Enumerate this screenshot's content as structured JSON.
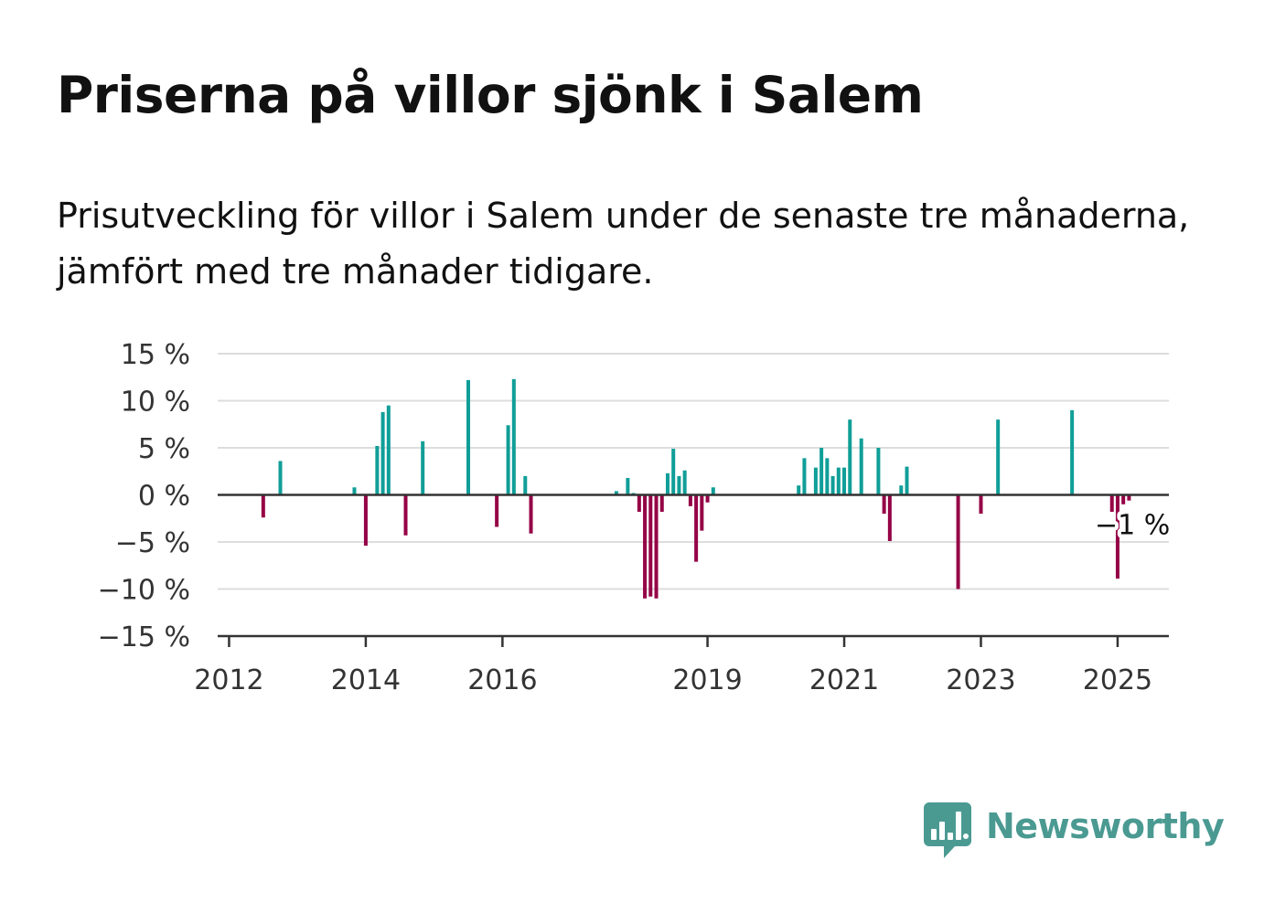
{
  "title": "Priserna på villor sjönk i Salem",
  "subtitle": "Prisutveckling för villor i Salem under de senaste tre månaderna, jämfört med tre månader tidigare.",
  "brand": {
    "name": "Newsworthy",
    "icon": "bar-chart-speech-bubble-icon",
    "color": "#4a9a92"
  },
  "colors": {
    "positive": "#109e98",
    "negative": "#950246",
    "grid": "#dddddd",
    "axis": "#333333"
  },
  "chart_data": {
    "type": "bar",
    "title": "",
    "xlabel": "",
    "ylabel": "",
    "ylim": [
      -15,
      15
    ],
    "yticks": [
      15,
      10,
      5,
      0,
      -5,
      -10,
      -15
    ],
    "ytick_labels": [
      "15 %",
      "10 %",
      "5 %",
      "0 %",
      "−5 %",
      "−10 %",
      "−15 %"
    ],
    "xticks": [
      "2012-01",
      "2014-01",
      "2016-01",
      "2019-01",
      "2021-01",
      "2023-01",
      "2025-01"
    ],
    "xtick_labels": [
      "2012",
      "2014",
      "2016",
      "2019",
      "2021",
      "2023",
      "2025"
    ],
    "xlim": [
      "2011-11",
      "2025-10"
    ],
    "grid": true,
    "annotations": [
      {
        "x": "2025-02",
        "text": "−1 %"
      }
    ],
    "x": [
      "2012-07",
      "2012-10",
      "2013-11",
      "2014-01",
      "2014-03",
      "2014-04",
      "2014-05",
      "2014-08",
      "2014-11",
      "2015-07",
      "2015-12",
      "2016-02",
      "2016-03",
      "2016-05",
      "2016-06",
      "2017-09",
      "2017-11",
      "2017-12",
      "2018-01",
      "2018-02",
      "2018-03",
      "2018-04",
      "2018-05",
      "2018-06",
      "2018-07",
      "2018-08",
      "2018-09",
      "2018-10",
      "2018-11",
      "2018-12",
      "2019-01",
      "2019-02",
      "2020-05",
      "2020-06",
      "2020-08",
      "2020-09",
      "2020-10",
      "2020-11",
      "2020-12",
      "2021-01",
      "2021-02",
      "2021-04",
      "2021-07",
      "2021-08",
      "2021-09",
      "2021-11",
      "2021-12",
      "2022-09",
      "2023-01",
      "2023-04",
      "2024-05",
      "2024-12",
      "2025-01",
      "2025-02",
      "2025-03"
    ],
    "values": [
      -2.4,
      3.6,
      0.8,
      -5.4,
      5.2,
      8.8,
      9.5,
      -4.3,
      5.7,
      12.2,
      -3.4,
      7.4,
      12.3,
      2.0,
      -4.1,
      0.4,
      1.8,
      0.2,
      -1.8,
      -11.0,
      -10.8,
      -11.0,
      -1.8,
      2.3,
      4.9,
      2.0,
      2.6,
      -1.2,
      -7.1,
      -3.8,
      -0.8,
      0.8,
      1.0,
      3.9,
      2.9,
      5.0,
      3.9,
      2.0,
      2.9,
      2.9,
      8.0,
      6.0,
      5.0,
      -2.0,
      -4.9,
      1.0,
      3.0,
      -10.0,
      -2.0,
      8.0,
      9.0,
      -1.8,
      -8.9,
      -1.0,
      -0.6
    ]
  }
}
